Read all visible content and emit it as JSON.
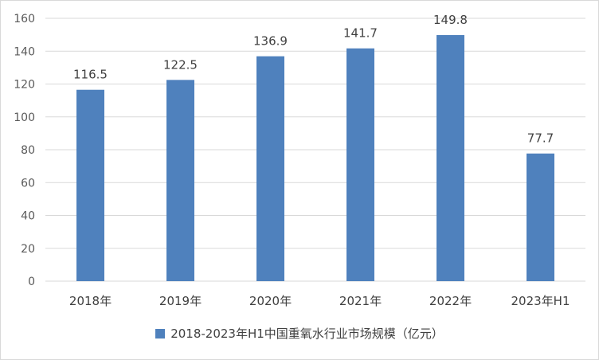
{
  "chart_data": {
    "type": "bar",
    "categories": [
      "2018年",
      "2019年",
      "2020年",
      "2021年",
      "2022年",
      "2023年H1"
    ],
    "series": [
      {
        "name": "2018-2023年H1中国重氧水行业市场规模（亿元）",
        "values": [
          116.5,
          122.5,
          136.9,
          141.7,
          149.8,
          77.7
        ]
      }
    ],
    "data_labels": [
      "116.5",
      "122.5",
      "136.9",
      "141.7",
      "149.8",
      "77.7"
    ],
    "y_ticks": [
      "0",
      "20",
      "40",
      "60",
      "80",
      "100",
      "120",
      "140",
      "160"
    ],
    "ylim": [
      0,
      160
    ],
    "grid": true,
    "legend_position": "bottom",
    "colors": {
      "bar": "#4f81bd",
      "grid": "#d9d9d9"
    }
  }
}
